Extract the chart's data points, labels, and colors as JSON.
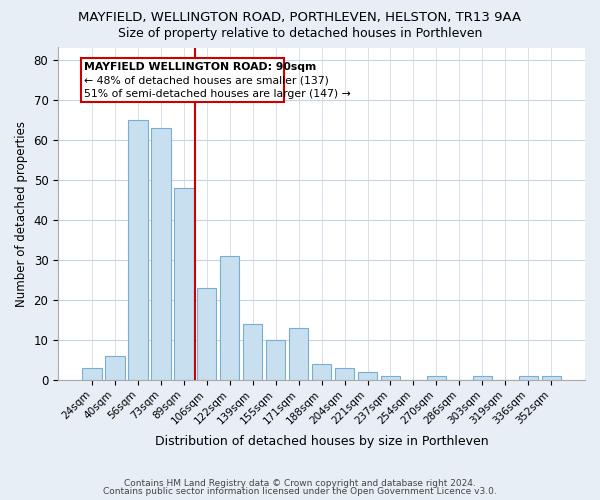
{
  "title": "MAYFIELD, WELLINGTON ROAD, PORTHLEVEN, HELSTON, TR13 9AA",
  "subtitle": "Size of property relative to detached houses in Porthleven",
  "xlabel": "Distribution of detached houses by size in Porthleven",
  "ylabel": "Number of detached properties",
  "categories": [
    "24sqm",
    "40sqm",
    "56sqm",
    "73sqm",
    "89sqm",
    "106sqm",
    "122sqm",
    "139sqm",
    "155sqm",
    "171sqm",
    "188sqm",
    "204sqm",
    "221sqm",
    "237sqm",
    "254sqm",
    "270sqm",
    "286sqm",
    "303sqm",
    "319sqm",
    "336sqm",
    "352sqm"
  ],
  "values": [
    3,
    6,
    65,
    63,
    48,
    23,
    31,
    14,
    10,
    13,
    4,
    3,
    2,
    1,
    0,
    1,
    0,
    1,
    0,
    1,
    1
  ],
  "bar_color": "#c8dff0",
  "bar_edge_color": "#7aaed0",
  "red_line_x": 4.5,
  "highlight_edge_color": "#cc0000",
  "ylim": [
    0,
    83
  ],
  "yticks": [
    0,
    10,
    20,
    30,
    40,
    50,
    60,
    70,
    80
  ],
  "annotation_title": "MAYFIELD WELLINGTON ROAD: 90sqm",
  "annotation_line1": "← 48% of detached houses are smaller (137)",
  "annotation_line2": "51% of semi-detached houses are larger (147) →",
  "footer_line1": "Contains HM Land Registry data © Crown copyright and database right 2024.",
  "footer_line2": "Contains public sector information licensed under the Open Government Licence v3.0.",
  "background_color": "#e8eef5",
  "plot_background_color": "#ffffff",
  "grid_color": "#c5d5e5"
}
